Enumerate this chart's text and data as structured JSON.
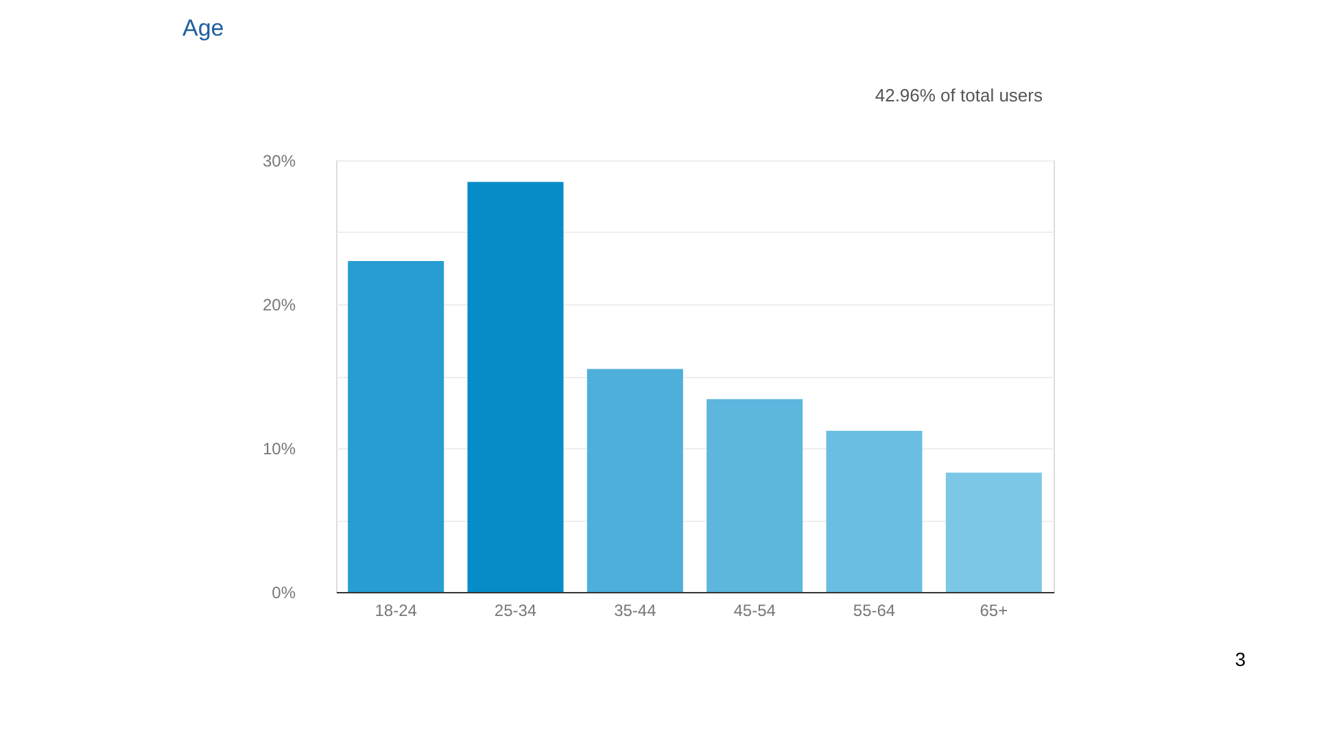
{
  "chart_data": {
    "type": "bar",
    "title": "Age",
    "categories": [
      "18-24",
      "25-34",
      "35-44",
      "45-54",
      "55-64",
      "65+"
    ],
    "values": [
      23.0,
      28.5,
      15.5,
      13.4,
      11.2,
      8.3
    ],
    "colors": [
      "#279dd3",
      "#068cc7",
      "#4fafdb",
      "#5cb6de",
      "#6abee2",
      "#7dc7e6"
    ],
    "ylim": [
      0,
      30
    ],
    "yticks": [
      {
        "value": 0,
        "label": "0%"
      },
      {
        "value": 5,
        "label": null
      },
      {
        "value": 10,
        "label": "10%"
      },
      {
        "value": 15,
        "label": null
      },
      {
        "value": 20,
        "label": "20%"
      },
      {
        "value": 25,
        "label": null
      },
      {
        "value": 30,
        "label": "30%"
      }
    ],
    "grid": "y",
    "annotations": [
      "42.96% of total users",
      "3"
    ]
  }
}
